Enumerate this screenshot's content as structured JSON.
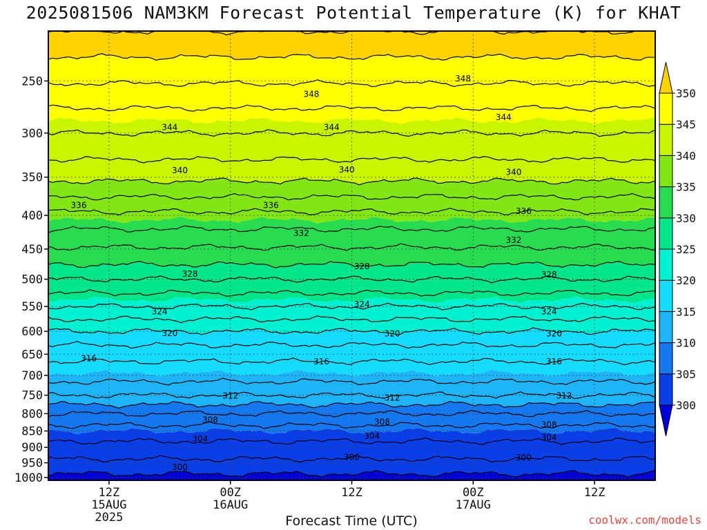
{
  "chart_data": {
    "type": "heatmap",
    "title": "2025081506 NAM3KM Forecast Potential Temperature (K) for KHAT",
    "xlabel": "Forecast Time (UTC)",
    "ylabel": "",
    "units": "K",
    "y_scale": "log-pressure",
    "y_ticks": [
      250,
      300,
      350,
      400,
      450,
      500,
      550,
      600,
      650,
      700,
      750,
      800,
      850,
      900,
      950,
      1000
    ],
    "ylim": [
      210,
      1010
    ],
    "xlim_hours": [
      0,
      60
    ],
    "x_ticks": [
      {
        "hour": 6,
        "lines": [
          "12Z",
          "15AUG",
          "2025"
        ]
      },
      {
        "hour": 18,
        "lines": [
          "00Z",
          "16AUG"
        ]
      },
      {
        "hour": 30,
        "lines": [
          "12Z"
        ]
      },
      {
        "hour": 42,
        "lines": [
          "00Z",
          "17AUG"
        ]
      },
      {
        "hour": 54,
        "lines": [
          "12Z"
        ]
      }
    ],
    "grid": true,
    "colorbar": {
      "levels": [
        300,
        305,
        310,
        315,
        320,
        325,
        330,
        335,
        340,
        345,
        350
      ],
      "labels": [
        "300",
        "305",
        "310",
        "315",
        "320",
        "325",
        "330",
        "335",
        "340",
        "345",
        "350"
      ],
      "colors": [
        "#0000d8",
        "#0a3ee6",
        "#1478f0",
        "#1eb4f8",
        "#14dcff",
        "#00f0d2",
        "#00e688",
        "#28dc50",
        "#82e614",
        "#c8f500",
        "#ffff00",
        "#ffd200"
      ]
    },
    "theta_profile": [
      {
        "p": 1000,
        "theta": 299.5
      },
      {
        "p": 975,
        "theta": 300.5
      },
      {
        "p": 950,
        "theta": 301.5
      },
      {
        "p": 925,
        "theta": 302.5
      },
      {
        "p": 900,
        "theta": 303.4
      },
      {
        "p": 875,
        "theta": 304.2
      },
      {
        "p": 850,
        "theta": 305.0
      },
      {
        "p": 825,
        "theta": 306.5
      },
      {
        "p": 800,
        "theta": 308.0
      },
      {
        "p": 775,
        "theta": 310.0
      },
      {
        "p": 750,
        "theta": 312.0
      },
      {
        "p": 725,
        "theta": 313.5
      },
      {
        "p": 700,
        "theta": 314.8
      },
      {
        "p": 675,
        "theta": 315.7
      },
      {
        "p": 650,
        "theta": 316.6
      },
      {
        "p": 625,
        "theta": 318.3
      },
      {
        "p": 600,
        "theta": 320.0
      },
      {
        "p": 575,
        "theta": 322.0
      },
      {
        "p": 550,
        "theta": 324.0
      },
      {
        "p": 525,
        "theta": 326.0
      },
      {
        "p": 500,
        "theta": 328.0
      },
      {
        "p": 475,
        "theta": 330.0
      },
      {
        "p": 450,
        "theta": 331.8
      },
      {
        "p": 425,
        "theta": 333.6
      },
      {
        "p": 400,
        "theta": 335.5
      },
      {
        "p": 375,
        "theta": 338.0
      },
      {
        "p": 350,
        "theta": 340.5
      },
      {
        "p": 325,
        "theta": 342.3
      },
      {
        "p": 300,
        "theta": 344.0
      },
      {
        "p": 275,
        "theta": 346.0
      },
      {
        "p": 250,
        "theta": 348.2
      },
      {
        "p": 230,
        "theta": 350.0
      },
      {
        "p": 215,
        "theta": 351.5
      }
    ],
    "contour_labels": [
      {
        "value": "348",
        "hour": 26,
        "p": 262
      },
      {
        "value": "348",
        "hour": 41,
        "p": 248
      },
      {
        "value": "344",
        "hour": 12,
        "p": 294
      },
      {
        "value": "344",
        "hour": 28,
        "p": 294
      },
      {
        "value": "344",
        "hour": 45,
        "p": 284
      },
      {
        "value": "340",
        "hour": 13,
        "p": 342
      },
      {
        "value": "340",
        "hour": 29.5,
        "p": 341
      },
      {
        "value": "340",
        "hour": 46,
        "p": 344
      },
      {
        "value": "336",
        "hour": 3,
        "p": 386
      },
      {
        "value": "336",
        "hour": 22,
        "p": 386
      },
      {
        "value": "336",
        "hour": 47,
        "p": 394
      },
      {
        "value": "332",
        "hour": 25,
        "p": 426
      },
      {
        "value": "332",
        "hour": 46,
        "p": 436
      },
      {
        "value": "328",
        "hour": 14,
        "p": 491
      },
      {
        "value": "328",
        "hour": 31,
        "p": 478
      },
      {
        "value": "328",
        "hour": 49.5,
        "p": 492
      },
      {
        "value": "324",
        "hour": 11,
        "p": 560
      },
      {
        "value": "324",
        "hour": 31,
        "p": 546
      },
      {
        "value": "324",
        "hour": 49.5,
        "p": 560
      },
      {
        "value": "320",
        "hour": 12,
        "p": 604
      },
      {
        "value": "320",
        "hour": 34,
        "p": 605
      },
      {
        "value": "320",
        "hour": 50,
        "p": 605
      },
      {
        "value": "316",
        "hour": 4,
        "p": 660
      },
      {
        "value": "316",
        "hour": 27,
        "p": 667
      },
      {
        "value": "316",
        "hour": 50,
        "p": 667
      },
      {
        "value": "312",
        "hour": 18,
        "p": 752
      },
      {
        "value": "312",
        "hour": 34,
        "p": 757
      },
      {
        "value": "312",
        "hour": 51,
        "p": 752
      },
      {
        "value": "308",
        "hour": 16,
        "p": 818
      },
      {
        "value": "308",
        "hour": 33,
        "p": 824
      },
      {
        "value": "308",
        "hour": 49.5,
        "p": 832
      },
      {
        "value": "304",
        "hour": 15,
        "p": 874
      },
      {
        "value": "304",
        "hour": 32,
        "p": 866
      },
      {
        "value": "304",
        "hour": 49.5,
        "p": 870
      },
      {
        "value": "300",
        "hour": 13,
        "p": 965
      },
      {
        "value": "300",
        "hour": 30,
        "p": 932
      },
      {
        "value": "300",
        "hour": 47,
        "p": 933
      }
    ],
    "ground": {
      "color": "#a0522d",
      "p_top": 1010
    }
  },
  "watermark": "coolwx.com/models"
}
